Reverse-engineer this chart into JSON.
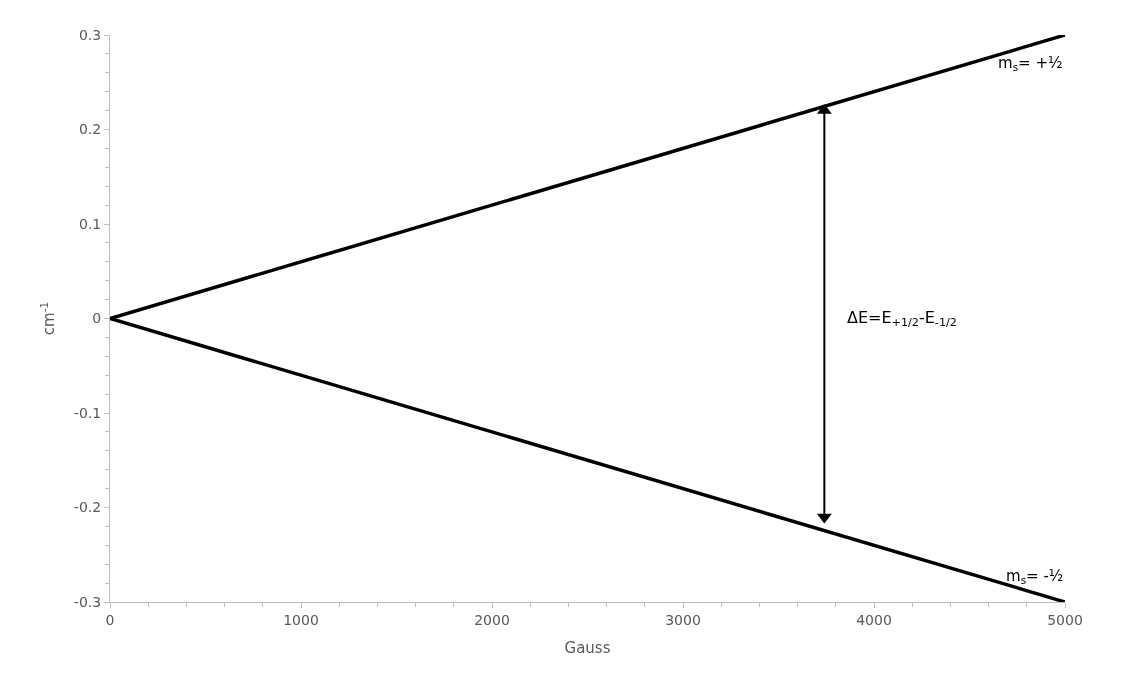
{
  "chart_data": {
    "type": "line",
    "xlabel": "Gauss",
    "ylabel": "cm$^{-1}$",
    "x": [
      0,
      5000
    ],
    "series": [
      {
        "name": "m$_{s}$= +½",
        "color": "#000000",
        "values": [
          0,
          0.3
        ]
      },
      {
        "name": "m$_{s}$= -½",
        "color": "#000000",
        "values": [
          0,
          -0.3
        ]
      },
      {
        "color": "#000000",
        "x": [
          3740,
          3740
        ],
        "values": [
          -0.21,
          0.22
        ],
        "marker": "triangle"
      }
    ],
    "annotations": [
      "ΔE=E$_{+1/2}$-E$_{-1/2}$"
    ],
    "xlim": [
      0,
      5000
    ],
    "xticks": [
      0,
      1000,
      2000,
      3000,
      4000,
      5000
    ],
    "ylim": [
      -0.3,
      0.3
    ],
    "yticks": [
      -0.3,
      -0.2,
      -0.1,
      0,
      0.1,
      0.2,
      0.3
    ],
    "legend": false,
    "marker": "none",
    "line_style": "solid"
  }
}
